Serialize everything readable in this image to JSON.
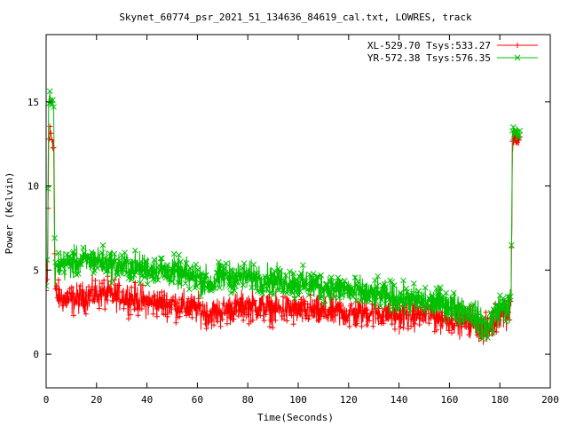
{
  "chart_data": {
    "type": "line",
    "title": "Skynet_60774_psr_2021_51_134636_84619_cal.txt, LOWRES, track",
    "xlabel": "Time(Seconds)",
    "ylabel": "Power (Kelvin)",
    "xlim": [
      0,
      200
    ],
    "ylim": [
      -2,
      19
    ],
    "xticks": [
      0,
      20,
      40,
      60,
      80,
      100,
      120,
      140,
      160,
      180,
      200
    ],
    "yticks": [
      0,
      5,
      10,
      15
    ],
    "grid": false,
    "legend_position": "top-right",
    "series": [
      {
        "name": "XL-529.70 Tsys:533.27",
        "color": "#ff0000",
        "marker": "plus",
        "x": [
          0,
          0.5,
          1,
          1.5,
          2,
          2.5,
          3,
          3.5,
          4,
          5,
          10,
          20,
          30,
          40,
          50,
          60,
          65,
          70,
          80,
          90,
          100,
          110,
          120,
          130,
          140,
          150,
          160,
          165,
          170,
          175,
          180,
          184,
          184.5,
          185,
          186,
          187,
          188
        ],
        "y": [
          3.7,
          4.2,
          12.5,
          13.2,
          13.0,
          12.8,
          12.5,
          3.8,
          3.5,
          3.4,
          3.2,
          3.6,
          3.5,
          3.1,
          3.0,
          2.7,
          2.4,
          2.6,
          2.9,
          2.7,
          2.6,
          2.5,
          2.4,
          2.5,
          2.3,
          2.4,
          2.1,
          2.0,
          1.9,
          1.3,
          2.5,
          2.5,
          3.5,
          12.5,
          12.9,
          12.7,
          12.6
        ]
      },
      {
        "name": "YR-572.38 Tsys:576.35",
        "color": "#00c000",
        "marker": "cross",
        "x": [
          0,
          0.5,
          1,
          1.5,
          2,
          2.5,
          3,
          3.5,
          4,
          5,
          10,
          20,
          30,
          40,
          50,
          60,
          65,
          70,
          80,
          90,
          100,
          110,
          120,
          130,
          140,
          150,
          160,
          165,
          170,
          175,
          180,
          184,
          184.5,
          185,
          186,
          187,
          188
        ],
        "y": [
          4.5,
          5.2,
          14.8,
          15.3,
          15.1,
          14.9,
          14.6,
          5.0,
          5.0,
          5.3,
          5.4,
          5.6,
          5.2,
          5.1,
          4.9,
          4.6,
          4.2,
          4.6,
          4.6,
          4.4,
          4.2,
          4.0,
          3.8,
          3.5,
          3.3,
          3.1,
          2.9,
          2.7,
          2.3,
          1.5,
          2.8,
          2.8,
          4.0,
          13.0,
          13.3,
          13.1,
          13.0
        ]
      }
    ]
  }
}
